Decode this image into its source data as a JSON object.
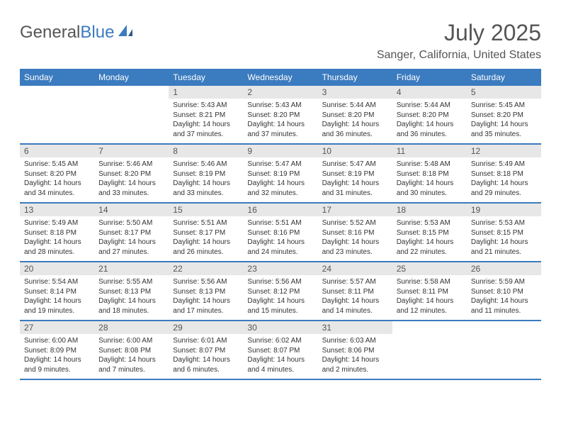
{
  "logo": {
    "text_gray": "General",
    "text_blue": "Blue"
  },
  "title": "July 2025",
  "location": "Sanger, California, United States",
  "colors": {
    "accent": "#3b7bbf",
    "header_text": "#555555",
    "daynum_bg": "#e7e7e7",
    "body_text": "#333333",
    "page_bg": "#ffffff"
  },
  "weekdays": [
    "Sunday",
    "Monday",
    "Tuesday",
    "Wednesday",
    "Thursday",
    "Friday",
    "Saturday"
  ],
  "weeks": [
    [
      {
        "empty": true
      },
      {
        "empty": true
      },
      {
        "day": "1",
        "sunrise": "Sunrise: 5:43 AM",
        "sunset": "Sunset: 8:21 PM",
        "daylight1": "Daylight: 14 hours",
        "daylight2": "and 37 minutes."
      },
      {
        "day": "2",
        "sunrise": "Sunrise: 5:43 AM",
        "sunset": "Sunset: 8:20 PM",
        "daylight1": "Daylight: 14 hours",
        "daylight2": "and 37 minutes."
      },
      {
        "day": "3",
        "sunrise": "Sunrise: 5:44 AM",
        "sunset": "Sunset: 8:20 PM",
        "daylight1": "Daylight: 14 hours",
        "daylight2": "and 36 minutes."
      },
      {
        "day": "4",
        "sunrise": "Sunrise: 5:44 AM",
        "sunset": "Sunset: 8:20 PM",
        "daylight1": "Daylight: 14 hours",
        "daylight2": "and 36 minutes."
      },
      {
        "day": "5",
        "sunrise": "Sunrise: 5:45 AM",
        "sunset": "Sunset: 8:20 PM",
        "daylight1": "Daylight: 14 hours",
        "daylight2": "and 35 minutes."
      }
    ],
    [
      {
        "day": "6",
        "sunrise": "Sunrise: 5:45 AM",
        "sunset": "Sunset: 8:20 PM",
        "daylight1": "Daylight: 14 hours",
        "daylight2": "and 34 minutes."
      },
      {
        "day": "7",
        "sunrise": "Sunrise: 5:46 AM",
        "sunset": "Sunset: 8:20 PM",
        "daylight1": "Daylight: 14 hours",
        "daylight2": "and 33 minutes."
      },
      {
        "day": "8",
        "sunrise": "Sunrise: 5:46 AM",
        "sunset": "Sunset: 8:19 PM",
        "daylight1": "Daylight: 14 hours",
        "daylight2": "and 33 minutes."
      },
      {
        "day": "9",
        "sunrise": "Sunrise: 5:47 AM",
        "sunset": "Sunset: 8:19 PM",
        "daylight1": "Daylight: 14 hours",
        "daylight2": "and 32 minutes."
      },
      {
        "day": "10",
        "sunrise": "Sunrise: 5:47 AM",
        "sunset": "Sunset: 8:19 PM",
        "daylight1": "Daylight: 14 hours",
        "daylight2": "and 31 minutes."
      },
      {
        "day": "11",
        "sunrise": "Sunrise: 5:48 AM",
        "sunset": "Sunset: 8:18 PM",
        "daylight1": "Daylight: 14 hours",
        "daylight2": "and 30 minutes."
      },
      {
        "day": "12",
        "sunrise": "Sunrise: 5:49 AM",
        "sunset": "Sunset: 8:18 PM",
        "daylight1": "Daylight: 14 hours",
        "daylight2": "and 29 minutes."
      }
    ],
    [
      {
        "day": "13",
        "sunrise": "Sunrise: 5:49 AM",
        "sunset": "Sunset: 8:18 PM",
        "daylight1": "Daylight: 14 hours",
        "daylight2": "and 28 minutes."
      },
      {
        "day": "14",
        "sunrise": "Sunrise: 5:50 AM",
        "sunset": "Sunset: 8:17 PM",
        "daylight1": "Daylight: 14 hours",
        "daylight2": "and 27 minutes."
      },
      {
        "day": "15",
        "sunrise": "Sunrise: 5:51 AM",
        "sunset": "Sunset: 8:17 PM",
        "daylight1": "Daylight: 14 hours",
        "daylight2": "and 26 minutes."
      },
      {
        "day": "16",
        "sunrise": "Sunrise: 5:51 AM",
        "sunset": "Sunset: 8:16 PM",
        "daylight1": "Daylight: 14 hours",
        "daylight2": "and 24 minutes."
      },
      {
        "day": "17",
        "sunrise": "Sunrise: 5:52 AM",
        "sunset": "Sunset: 8:16 PM",
        "daylight1": "Daylight: 14 hours",
        "daylight2": "and 23 minutes."
      },
      {
        "day": "18",
        "sunrise": "Sunrise: 5:53 AM",
        "sunset": "Sunset: 8:15 PM",
        "daylight1": "Daylight: 14 hours",
        "daylight2": "and 22 minutes."
      },
      {
        "day": "19",
        "sunrise": "Sunrise: 5:53 AM",
        "sunset": "Sunset: 8:15 PM",
        "daylight1": "Daylight: 14 hours",
        "daylight2": "and 21 minutes."
      }
    ],
    [
      {
        "day": "20",
        "sunrise": "Sunrise: 5:54 AM",
        "sunset": "Sunset: 8:14 PM",
        "daylight1": "Daylight: 14 hours",
        "daylight2": "and 19 minutes."
      },
      {
        "day": "21",
        "sunrise": "Sunrise: 5:55 AM",
        "sunset": "Sunset: 8:13 PM",
        "daylight1": "Daylight: 14 hours",
        "daylight2": "and 18 minutes."
      },
      {
        "day": "22",
        "sunrise": "Sunrise: 5:56 AM",
        "sunset": "Sunset: 8:13 PM",
        "daylight1": "Daylight: 14 hours",
        "daylight2": "and 17 minutes."
      },
      {
        "day": "23",
        "sunrise": "Sunrise: 5:56 AM",
        "sunset": "Sunset: 8:12 PM",
        "daylight1": "Daylight: 14 hours",
        "daylight2": "and 15 minutes."
      },
      {
        "day": "24",
        "sunrise": "Sunrise: 5:57 AM",
        "sunset": "Sunset: 8:11 PM",
        "daylight1": "Daylight: 14 hours",
        "daylight2": "and 14 minutes."
      },
      {
        "day": "25",
        "sunrise": "Sunrise: 5:58 AM",
        "sunset": "Sunset: 8:11 PM",
        "daylight1": "Daylight: 14 hours",
        "daylight2": "and 12 minutes."
      },
      {
        "day": "26",
        "sunrise": "Sunrise: 5:59 AM",
        "sunset": "Sunset: 8:10 PM",
        "daylight1": "Daylight: 14 hours",
        "daylight2": "and 11 minutes."
      }
    ],
    [
      {
        "day": "27",
        "sunrise": "Sunrise: 6:00 AM",
        "sunset": "Sunset: 8:09 PM",
        "daylight1": "Daylight: 14 hours",
        "daylight2": "and 9 minutes."
      },
      {
        "day": "28",
        "sunrise": "Sunrise: 6:00 AM",
        "sunset": "Sunset: 8:08 PM",
        "daylight1": "Daylight: 14 hours",
        "daylight2": "and 7 minutes."
      },
      {
        "day": "29",
        "sunrise": "Sunrise: 6:01 AM",
        "sunset": "Sunset: 8:07 PM",
        "daylight1": "Daylight: 14 hours",
        "daylight2": "and 6 minutes."
      },
      {
        "day": "30",
        "sunrise": "Sunrise: 6:02 AM",
        "sunset": "Sunset: 8:07 PM",
        "daylight1": "Daylight: 14 hours",
        "daylight2": "and 4 minutes."
      },
      {
        "day": "31",
        "sunrise": "Sunrise: 6:03 AM",
        "sunset": "Sunset: 8:06 PM",
        "daylight1": "Daylight: 14 hours",
        "daylight2": "and 2 minutes."
      },
      {
        "empty": true
      },
      {
        "empty": true
      }
    ]
  ]
}
